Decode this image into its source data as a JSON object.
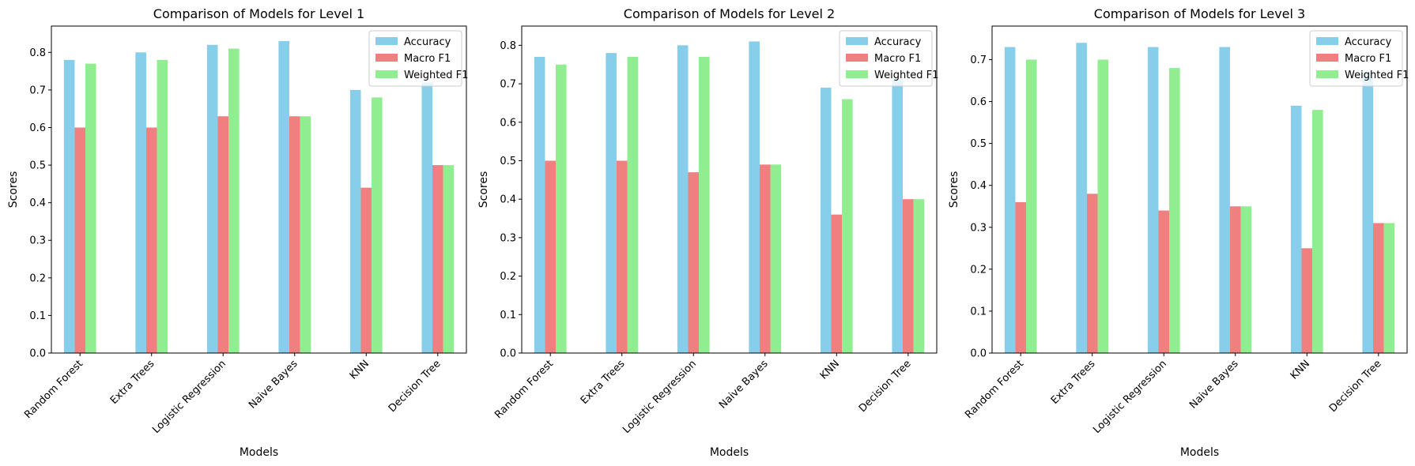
{
  "chart_data": [
    {
      "type": "bar",
      "title": "Comparison of Models for Level 1",
      "xlabel": "Models",
      "ylabel": "Scores",
      "ylim": [
        0,
        0.87
      ],
      "yticks": [
        "0.0",
        "0.1",
        "0.2",
        "0.3",
        "0.4",
        "0.5",
        "0.6",
        "0.7",
        "0.8"
      ],
      "legend_position": "top-right",
      "categories": [
        "Random Forest",
        "Extra Trees",
        "Logistic Regression",
        "Naive Bayes",
        "KNN",
        "Decision Tree"
      ],
      "series": [
        {
          "name": "Accuracy",
          "color": "#87ceeb",
          "values": [
            0.78,
            0.8,
            0.82,
            0.83,
            0.7,
            0.72
          ]
        },
        {
          "name": "Macro F1",
          "color": "#f08080",
          "values": [
            0.6,
            0.6,
            0.63,
            0.63,
            0.44,
            0.5
          ]
        },
        {
          "name": "Weighted F1",
          "color": "#90ee90",
          "values": [
            0.77,
            0.78,
            0.81,
            0.63,
            0.68,
            0.5
          ]
        }
      ]
    },
    {
      "type": "bar",
      "title": "Comparison of Models for Level 2",
      "xlabel": "Models",
      "ylabel": "Scores",
      "ylim": [
        0,
        0.85
      ],
      "yticks": [
        "0.0",
        "0.1",
        "0.2",
        "0.3",
        "0.4",
        "0.5",
        "0.6",
        "0.7",
        "0.8"
      ],
      "legend_position": "top-right",
      "categories": [
        "Random Forest",
        "Extra Trees",
        "Logistic Regression",
        "Naive Bayes",
        "KNN",
        "Decision Tree"
      ],
      "series": [
        {
          "name": "Accuracy",
          "color": "#87ceeb",
          "values": [
            0.77,
            0.78,
            0.8,
            0.81,
            0.69,
            0.71
          ]
        },
        {
          "name": "Macro F1",
          "color": "#f08080",
          "values": [
            0.5,
            0.5,
            0.47,
            0.49,
            0.36,
            0.4
          ]
        },
        {
          "name": "Weighted F1",
          "color": "#90ee90",
          "values": [
            0.75,
            0.77,
            0.77,
            0.49,
            0.66,
            0.4
          ]
        }
      ]
    },
    {
      "type": "bar",
      "title": "Comparison of Models for Level 3",
      "xlabel": "Models",
      "ylabel": "Scores",
      "ylim": [
        0,
        0.78
      ],
      "yticks": [
        "0.0",
        "0.1",
        "0.2",
        "0.3",
        "0.4",
        "0.5",
        "0.6",
        "0.7"
      ],
      "legend_position": "top-right",
      "categories": [
        "Random Forest",
        "Extra Trees",
        "Logistic Regression",
        "Naive Bayes",
        "KNN",
        "Decision Tree"
      ],
      "series": [
        {
          "name": "Accuracy",
          "color": "#87ceeb",
          "values": [
            0.73,
            0.74,
            0.73,
            0.73,
            0.59,
            0.67
          ]
        },
        {
          "name": "Macro F1",
          "color": "#f08080",
          "values": [
            0.36,
            0.38,
            0.34,
            0.35,
            0.25,
            0.31
          ]
        },
        {
          "name": "Weighted F1",
          "color": "#90ee90",
          "values": [
            0.7,
            0.7,
            0.68,
            0.35,
            0.58,
            0.31
          ]
        }
      ]
    }
  ]
}
